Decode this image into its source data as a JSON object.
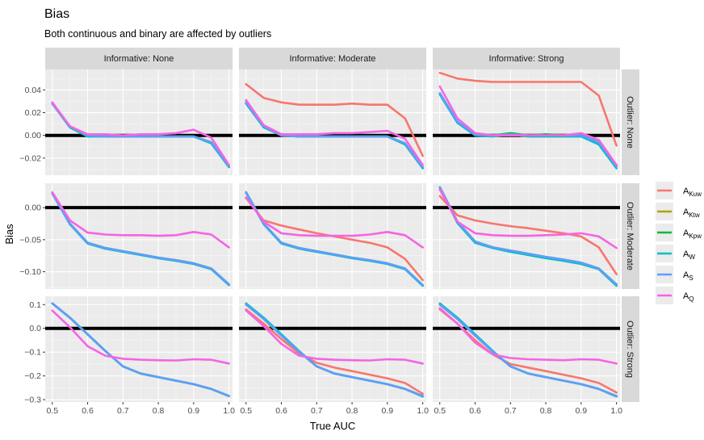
{
  "chart_data": {
    "type": "line",
    "title": "Bias",
    "subtitle": "Both continuous and binary are affected by outliers",
    "xlabel": "True AUC",
    "ylabel": "Bias",
    "facet_cols": [
      "Informative: None",
      "Informative: Moderate",
      "Informative: Strong"
    ],
    "facet_rows": [
      "Outlier: None",
      "Outlier: Moderate",
      "Outlier: Strong"
    ],
    "x_ticks": [
      0.5,
      0.6,
      0.7,
      0.8,
      0.9,
      1.0
    ],
    "x_tick_labels": [
      "0.5",
      "0.6",
      "0.7",
      "0.8",
      "0.9",
      "1.0"
    ],
    "xlim": [
      0.48,
      1.01
    ],
    "row_scales": [
      {
        "ylim": [
          -0.035,
          0.058
        ],
        "ticks": [
          -0.02,
          0.0,
          0.02,
          0.04
        ],
        "tick_labels": [
          "−0.02",
          "0.00",
          "0.02",
          "0.04"
        ]
      },
      {
        "ylim": [
          -0.127,
          0.038
        ],
        "ticks": [
          -0.1,
          -0.05,
          0.0
        ],
        "tick_labels": [
          "−0.10",
          "−0.05",
          "0.00"
        ]
      },
      {
        "ylim": [
          -0.31,
          0.135
        ],
        "ticks": [
          -0.3,
          -0.2,
          -0.1,
          0.0,
          0.1
        ],
        "tick_labels": [
          "−0.3",
          "−0.2",
          "−0.1",
          "0.0",
          "0.1"
        ]
      }
    ],
    "reference_line_y": 0,
    "legend": {
      "position": "right",
      "entries": [
        {
          "key": "Kuw",
          "base": "A",
          "sub": "Kuw",
          "color": "#F8766D"
        },
        {
          "key": "Ktw",
          "base": "A",
          "sub": "Ktw",
          "color": "#B79F00"
        },
        {
          "key": "Kpw",
          "base": "A",
          "sub": "Kpw",
          "color": "#00BA38"
        },
        {
          "key": "W",
          "base": "A",
          "sub": "W",
          "color": "#00BFC4"
        },
        {
          "key": "S",
          "base": "A",
          "sub": "S",
          "color": "#619CFF"
        },
        {
          "key": "Q",
          "base": "A",
          "sub": "Q",
          "color": "#F564E3"
        }
      ]
    },
    "x": [
      0.5,
      0.55,
      0.6,
      0.65,
      0.7,
      0.75,
      0.8,
      0.85,
      0.9,
      0.95,
      1.0
    ],
    "panels": [
      [
        {
          "series": {
            "Kuw": [
              0.028,
              0.008,
              0.0,
              -0.001,
              -0.001,
              -0.001,
              -0.001,
              -0.001,
              -0.001,
              -0.006,
              -0.027
            ],
            "Ktw": [
              0.028,
              0.008,
              0.0,
              -0.001,
              -0.001,
              -0.001,
              -0.001,
              -0.001,
              -0.001,
              -0.006,
              -0.027
            ],
            "Kpw": [
              0.028,
              0.008,
              0.0,
              -0.001,
              -0.001,
              -0.001,
              -0.001,
              -0.001,
              -0.001,
              -0.006,
              -0.027
            ],
            "W": [
              0.028,
              0.007,
              -0.001,
              -0.001,
              -0.001,
              -0.001,
              -0.001,
              -0.001,
              -0.001,
              -0.007,
              -0.028
            ],
            "S": [
              0.028,
              0.008,
              0.0,
              -0.001,
              -0.001,
              -0.001,
              -0.001,
              -0.001,
              -0.001,
              -0.006,
              -0.027
            ],
            "Q": [
              0.029,
              0.008,
              0.001,
              0.001,
              0.0,
              0.001,
              0.001,
              0.002,
              0.005,
              -0.002,
              -0.026
            ]
          }
        },
        {
          "series": {
            "Kuw": [
              0.045,
              0.033,
              0.029,
              0.027,
              0.027,
              0.027,
              0.028,
              0.027,
              0.027,
              0.015,
              -0.018
            ],
            "Ktw": [
              0.029,
              0.008,
              0.0,
              -0.001,
              -0.001,
              -0.001,
              -0.001,
              -0.001,
              -0.001,
              -0.007,
              -0.028
            ],
            "Kpw": [
              0.029,
              0.008,
              0.0,
              -0.001,
              -0.001,
              -0.001,
              -0.001,
              -0.001,
              -0.001,
              -0.007,
              -0.028
            ],
            "W": [
              0.028,
              0.007,
              0.0,
              -0.001,
              -0.001,
              -0.001,
              -0.001,
              -0.001,
              -0.001,
              -0.008,
              -0.029
            ],
            "S": [
              0.029,
              0.008,
              0.0,
              -0.001,
              -0.001,
              -0.001,
              -0.001,
              -0.001,
              -0.001,
              -0.007,
              -0.028
            ],
            "Q": [
              0.031,
              0.009,
              0.001,
              0.001,
              0.001,
              0.002,
              0.002,
              0.003,
              0.004,
              -0.003,
              -0.026
            ]
          }
        },
        {
          "series": {
            "Kuw": [
              0.055,
              0.05,
              0.048,
              0.047,
              0.047,
              0.047,
              0.047,
              0.047,
              0.047,
              0.035,
              -0.009
            ],
            "Ktw": [
              0.037,
              0.012,
              0.001,
              0.0,
              0.001,
              0.0,
              0.0,
              0.0,
              0.0,
              -0.006,
              -0.027
            ],
            "Kpw": [
              0.037,
              0.012,
              0.001,
              0.0,
              0.002,
              0.0,
              0.001,
              0.0,
              0.0,
              -0.006,
              -0.027
            ],
            "W": [
              0.036,
              0.011,
              0.0,
              -0.001,
              0.001,
              -0.001,
              -0.001,
              -0.001,
              -0.001,
              -0.008,
              -0.029
            ],
            "S": [
              0.037,
              0.012,
              0.001,
              0.0,
              0.001,
              0.0,
              0.0,
              0.0,
              0.0,
              -0.006,
              -0.027
            ],
            "Q": [
              0.043,
              0.015,
              0.002,
              0.0,
              0.0,
              0.0,
              0.0,
              0.0,
              0.002,
              -0.004,
              -0.026
            ]
          }
        }
      ],
      [
        {
          "series": {
            "Kuw": [
              0.023,
              -0.025,
              -0.055,
              -0.063,
              -0.068,
              -0.073,
              -0.078,
              -0.082,
              -0.087,
              -0.095,
              -0.12
            ],
            "Ktw": [
              0.023,
              -0.025,
              -0.055,
              -0.063,
              -0.068,
              -0.073,
              -0.078,
              -0.082,
              -0.087,
              -0.095,
              -0.12
            ],
            "Kpw": [
              0.023,
              -0.025,
              -0.055,
              -0.063,
              -0.068,
              -0.073,
              -0.078,
              -0.082,
              -0.087,
              -0.095,
              -0.12
            ],
            "W": [
              0.022,
              -0.026,
              -0.056,
              -0.064,
              -0.069,
              -0.074,
              -0.079,
              -0.083,
              -0.088,
              -0.096,
              -0.121
            ],
            "S": [
              0.023,
              -0.025,
              -0.055,
              -0.063,
              -0.068,
              -0.073,
              -0.078,
              -0.082,
              -0.087,
              -0.095,
              -0.12
            ],
            "Q": [
              0.024,
              -0.02,
              -0.039,
              -0.042,
              -0.043,
              -0.043,
              -0.044,
              -0.043,
              -0.038,
              -0.042,
              -0.062
            ]
          }
        },
        {
          "series": {
            "Kuw": [
              0.015,
              -0.02,
              -0.028,
              -0.034,
              -0.04,
              -0.045,
              -0.05,
              -0.055,
              -0.062,
              -0.08,
              -0.113
            ],
            "Ktw": [
              0.024,
              -0.025,
              -0.055,
              -0.063,
              -0.068,
              -0.073,
              -0.078,
              -0.082,
              -0.087,
              -0.095,
              -0.121
            ],
            "Kpw": [
              0.024,
              -0.025,
              -0.055,
              -0.063,
              -0.068,
              -0.073,
              -0.078,
              -0.082,
              -0.087,
              -0.095,
              -0.121
            ],
            "W": [
              0.023,
              -0.026,
              -0.056,
              -0.064,
              -0.069,
              -0.074,
              -0.079,
              -0.083,
              -0.088,
              -0.096,
              -0.122
            ],
            "S": [
              0.024,
              -0.025,
              -0.055,
              -0.063,
              -0.068,
              -0.073,
              -0.078,
              -0.082,
              -0.087,
              -0.095,
              -0.121
            ],
            "Q": [
              0.016,
              -0.022,
              -0.04,
              -0.043,
              -0.044,
              -0.044,
              -0.044,
              -0.042,
              -0.038,
              -0.043,
              -0.062
            ]
          }
        },
        {
          "series": {
            "Kuw": [
              0.018,
              -0.012,
              -0.02,
              -0.025,
              -0.029,
              -0.032,
              -0.036,
              -0.04,
              -0.045,
              -0.062,
              -0.104
            ],
            "Ktw": [
              0.032,
              -0.022,
              -0.053,
              -0.062,
              -0.067,
              -0.072,
              -0.077,
              -0.081,
              -0.086,
              -0.095,
              -0.12
            ],
            "Kpw": [
              0.032,
              -0.022,
              -0.053,
              -0.062,
              -0.067,
              -0.072,
              -0.077,
              -0.081,
              -0.086,
              -0.095,
              -0.12
            ],
            "W": [
              0.031,
              -0.024,
              -0.055,
              -0.063,
              -0.069,
              -0.074,
              -0.079,
              -0.083,
              -0.088,
              -0.096,
              -0.122
            ],
            "S": [
              0.032,
              -0.022,
              -0.053,
              -0.062,
              -0.067,
              -0.072,
              -0.077,
              -0.081,
              -0.086,
              -0.095,
              -0.12
            ],
            "Q": [
              0.028,
              -0.022,
              -0.04,
              -0.043,
              -0.044,
              -0.044,
              -0.043,
              -0.042,
              -0.04,
              -0.045,
              -0.063
            ]
          }
        }
      ],
      [
        {
          "series": {
            "Kuw": [
              0.105,
              0.045,
              -0.025,
              -0.095,
              -0.16,
              -0.19,
              -0.205,
              -0.22,
              -0.235,
              -0.255,
              -0.285
            ],
            "Ktw": [
              0.105,
              0.045,
              -0.025,
              -0.095,
              -0.16,
              -0.19,
              -0.205,
              -0.22,
              -0.235,
              -0.255,
              -0.285
            ],
            "Kpw": [
              0.105,
              0.045,
              -0.025,
              -0.095,
              -0.16,
              -0.19,
              -0.205,
              -0.22,
              -0.235,
              -0.255,
              -0.285
            ],
            "W": [
              0.105,
              0.045,
              -0.025,
              -0.095,
              -0.16,
              -0.19,
              -0.205,
              -0.22,
              -0.235,
              -0.255,
              -0.285
            ],
            "S": [
              0.105,
              0.045,
              -0.025,
              -0.095,
              -0.16,
              -0.19,
              -0.205,
              -0.22,
              -0.235,
              -0.255,
              -0.285
            ],
            "Q": [
              0.075,
              0.005,
              -0.075,
              -0.115,
              -0.128,
              -0.132,
              -0.134,
              -0.135,
              -0.13,
              -0.132,
              -0.148
            ]
          }
        },
        {
          "series": {
            "Kuw": [
              0.08,
              0.02,
              -0.045,
              -0.105,
              -0.145,
              -0.165,
              -0.18,
              -0.195,
              -0.21,
              -0.23,
              -0.275
            ],
            "Ktw": [
              0.1,
              0.04,
              -0.03,
              -0.098,
              -0.16,
              -0.19,
              -0.205,
              -0.22,
              -0.235,
              -0.255,
              -0.285
            ],
            "Kpw": [
              0.1,
              0.04,
              -0.03,
              -0.098,
              -0.16,
              -0.19,
              -0.205,
              -0.22,
              -0.235,
              -0.255,
              -0.285
            ],
            "W": [
              0.105,
              0.045,
              -0.025,
              -0.095,
              -0.16,
              -0.19,
              -0.205,
              -0.22,
              -0.235,
              -0.255,
              -0.287
            ],
            "S": [
              0.1,
              0.04,
              -0.03,
              -0.098,
              -0.16,
              -0.19,
              -0.205,
              -0.22,
              -0.235,
              -0.255,
              -0.285
            ],
            "Q": [
              0.075,
              0.01,
              -0.065,
              -0.115,
              -0.128,
              -0.132,
              -0.134,
              -0.135,
              -0.13,
              -0.132,
              -0.148
            ]
          }
        },
        {
          "series": {
            "Kuw": [
              0.08,
              0.02,
              -0.05,
              -0.11,
              -0.15,
              -0.165,
              -0.18,
              -0.195,
              -0.21,
              -0.23,
              -0.27
            ],
            "Ktw": [
              0.1,
              0.04,
              -0.03,
              -0.098,
              -0.16,
              -0.19,
              -0.205,
              -0.22,
              -0.235,
              -0.255,
              -0.285
            ],
            "Kpw": [
              0.1,
              0.04,
              -0.03,
              -0.098,
              -0.16,
              -0.19,
              -0.205,
              -0.22,
              -0.235,
              -0.255,
              -0.285
            ],
            "W": [
              0.105,
              0.045,
              -0.025,
              -0.095,
              -0.16,
              -0.19,
              -0.205,
              -0.22,
              -0.235,
              -0.255,
              -0.287
            ],
            "S": [
              0.1,
              0.04,
              -0.03,
              -0.098,
              -0.16,
              -0.19,
              -0.205,
              -0.22,
              -0.235,
              -0.255,
              -0.285
            ],
            "Q": [
              0.085,
              0.02,
              -0.06,
              -0.11,
              -0.125,
              -0.13,
              -0.132,
              -0.134,
              -0.13,
              -0.132,
              -0.148
            ]
          }
        }
      ]
    ]
  }
}
